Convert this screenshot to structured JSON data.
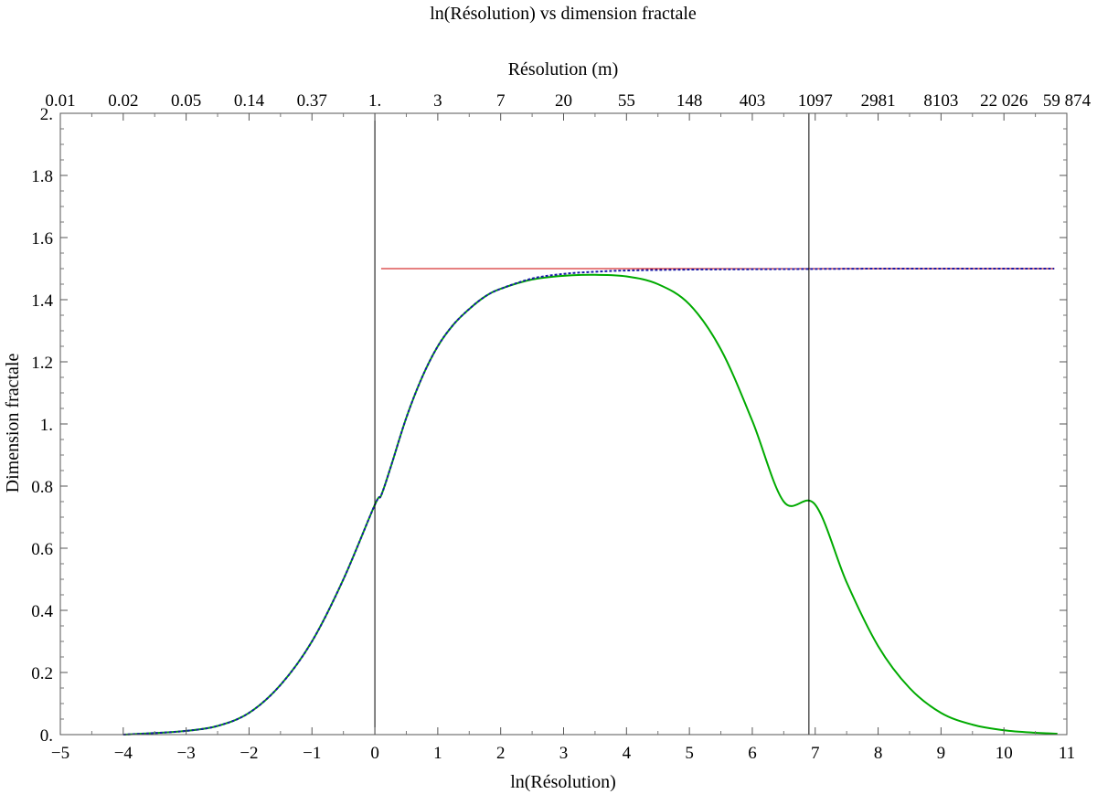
{
  "chart_data": {
    "type": "line",
    "title": "ln(Résolution) vs dimension fractale",
    "xlabel": "ln(Résolution)",
    "ylabel": "Dimension fractale",
    "top_axis_label": "Résolution (m)",
    "xlim": [
      -5,
      11
    ],
    "ylim": [
      0,
      2
    ],
    "grid": false,
    "legend": "none",
    "x_ticks": [
      -5,
      -4,
      -3,
      -2,
      -1,
      0,
      1,
      2,
      3,
      4,
      5,
      6,
      7,
      8,
      9,
      10,
      11
    ],
    "x_tick_labels": [
      "−5",
      "−4",
      "−3",
      "−2",
      "−1",
      "0",
      "1",
      "2",
      "3",
      "4",
      "5",
      "6",
      "7",
      "8",
      "9",
      "10",
      "11"
    ],
    "y_ticks": [
      0,
      0.2,
      0.4,
      0.6,
      0.8,
      1.0,
      1.2,
      1.4,
      1.6,
      1.8,
      2.0
    ],
    "y_tick_labels": [
      "0.",
      "0.2",
      "0.4",
      "0.6",
      "0.8",
      "1.",
      "1.2",
      "1.4",
      "1.6",
      "1.8",
      "2."
    ],
    "top_ticks": [
      -5,
      -4,
      -3,
      -2,
      -1,
      0,
      1,
      2,
      3,
      4,
      5,
      6,
      7,
      8,
      9,
      10,
      11
    ],
    "top_tick_labels": [
      "0.01",
      "0.02",
      "0.05",
      "0.14",
      "0.37",
      "1.",
      "3",
      "7",
      "20",
      "55",
      "148",
      "403",
      "1097",
      "2981",
      "8103",
      "22 026",
      "59 874"
    ],
    "vertical_lines": [
      0,
      6.9
    ],
    "series": [
      {
        "color": "#00aa00",
        "style": "solid",
        "x": [
          -4.0,
          -3.5,
          -3.0,
          -2.5,
          -2.0,
          -1.5,
          -1.0,
          -0.5,
          0.0,
          0.1,
          0.25,
          0.5,
          0.75,
          1.0,
          1.25,
          1.5,
          1.75,
          2.0,
          2.5,
          3.0,
          3.5,
          4.0,
          4.5,
          5.0,
          5.5,
          6.0,
          6.5,
          7.0,
          7.5,
          8.0,
          8.5,
          9.0,
          9.5,
          10.0,
          10.5,
          10.85
        ],
        "y": [
          0.0,
          0.005,
          0.012,
          0.028,
          0.07,
          0.16,
          0.3,
          0.5,
          0.74,
          0.77,
          0.86,
          1.02,
          1.15,
          1.25,
          1.32,
          1.37,
          1.41,
          1.435,
          1.465,
          1.477,
          1.48,
          1.475,
          1.45,
          1.385,
          1.24,
          1.01,
          0.75,
          0.74,
          0.49,
          0.285,
          0.15,
          0.07,
          0.032,
          0.014,
          0.006,
          0.003
        ]
      },
      {
        "color": "#1a1aa8",
        "style": "dashed",
        "x": [
          -4.0,
          -3.5,
          -3.0,
          -2.5,
          -2.0,
          -1.5,
          -1.0,
          -0.5,
          0.0,
          0.1,
          0.25,
          0.5,
          0.75,
          1.0,
          1.25,
          1.5,
          1.75,
          2.0,
          2.5,
          3.0,
          3.5,
          4.0,
          5.0,
          6.0,
          7.0,
          8.0,
          9.0,
          10.0,
          10.8
        ],
        "y": [
          0.0,
          0.005,
          0.012,
          0.028,
          0.07,
          0.16,
          0.3,
          0.5,
          0.74,
          0.77,
          0.86,
          1.02,
          1.15,
          1.25,
          1.32,
          1.37,
          1.41,
          1.435,
          1.468,
          1.483,
          1.49,
          1.494,
          1.497,
          1.498,
          1.499,
          1.5,
          1.5,
          1.5,
          1.5
        ]
      },
      {
        "color": "#cc0000",
        "style": "solid",
        "x": [
          0.1,
          10.8
        ],
        "y": [
          1.5,
          1.5
        ]
      }
    ]
  }
}
